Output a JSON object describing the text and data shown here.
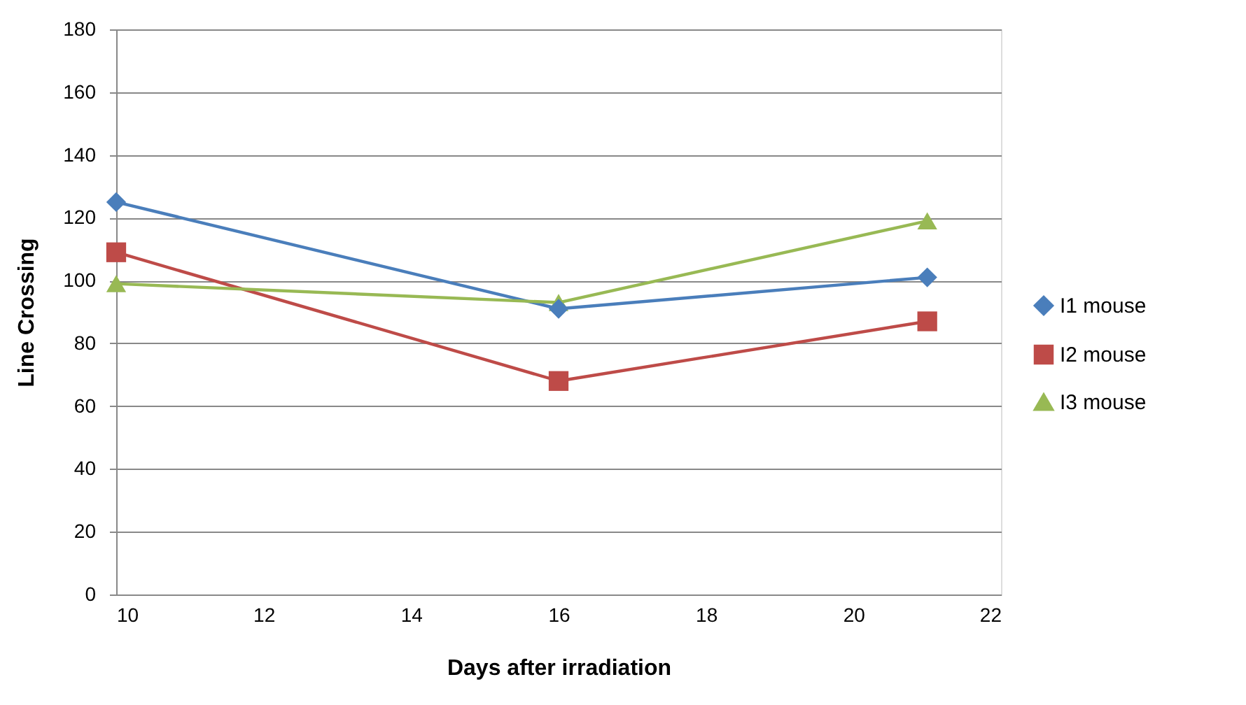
{
  "chart_data": {
    "type": "line",
    "xlabel": "Days after irradiation",
    "ylabel": "Line Crossing",
    "x": [
      10,
      16,
      21
    ],
    "xlim": [
      10,
      22
    ],
    "xticks": [
      10,
      12,
      14,
      16,
      18,
      20,
      22
    ],
    "ylim": [
      0,
      180
    ],
    "yticks": [
      0,
      20,
      40,
      60,
      80,
      100,
      120,
      140,
      160,
      180
    ],
    "grid": "y",
    "legend": "right",
    "line_style": "solid",
    "series": [
      {
        "name": "I1 mouse",
        "color": "#4a7ebb",
        "marker": "diamond",
        "values": [
          125,
          91,
          101
        ]
      },
      {
        "name": "I2 mouse",
        "color": "#be4b48",
        "marker": "square",
        "values": [
          109,
          68,
          87
        ]
      },
      {
        "name": "I3 mouse",
        "color": "#98b954",
        "marker": "triangle",
        "values": [
          99,
          93,
          119
        ]
      }
    ]
  }
}
